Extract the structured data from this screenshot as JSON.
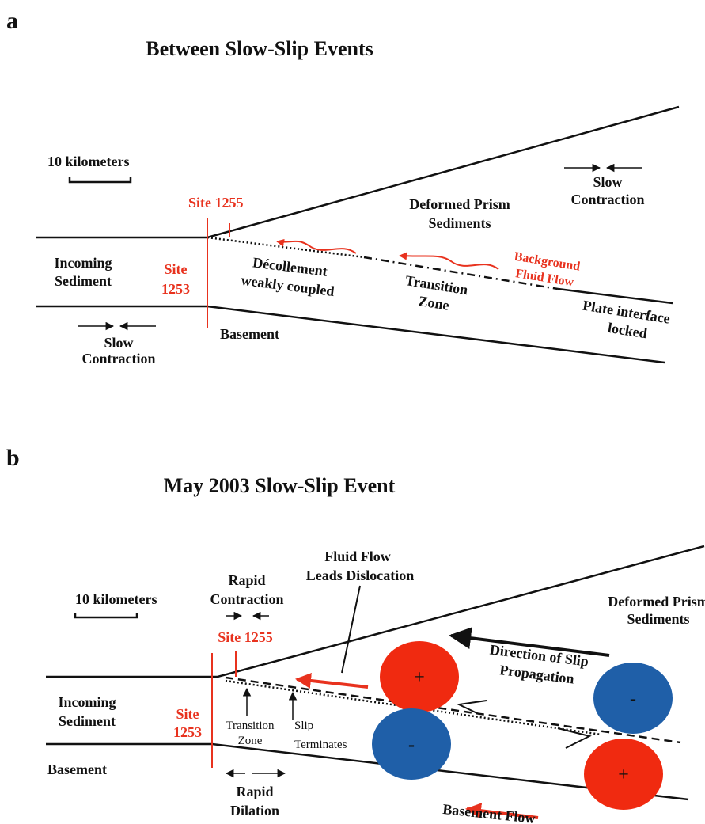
{
  "panel_a": {
    "label": "a",
    "title": "Between Slow-Slip Events",
    "scale": "10 kilometers",
    "site_1255": "Site 1255",
    "site_1253": [
      "Site",
      "1253"
    ],
    "prism": [
      "Deformed Prism",
      "Sediments"
    ],
    "slow_contraction_right": [
      "Slow",
      "Contraction"
    ],
    "incoming": [
      "Incoming",
      "Sediment"
    ],
    "decollement": [
      "Décollement",
      "weakly coupled"
    ],
    "fluid_flow": [
      "Background",
      "Fluid Flow"
    ],
    "transition": [
      "Transition",
      "Zone"
    ],
    "plate_interface": [
      "Plate interface",
      "locked"
    ],
    "basement": "Basement",
    "slow_contraction_left": [
      "Slow",
      "Contraction"
    ]
  },
  "panel_b": {
    "label": "b",
    "title": "May 2003 Slow-Slip Event",
    "scale": "10 kilometers",
    "rapid_contraction": [
      "Rapid",
      "Contraction"
    ],
    "site_1255": "Site 1255",
    "fluid_leads": [
      "Fluid Flow",
      "Leads Dislocation"
    ],
    "prism": [
      "Deformed Prism",
      "Sediments"
    ],
    "slip_direction": [
      "Direction of Slip",
      "Propagation"
    ],
    "incoming": [
      "Incoming",
      "Sediment"
    ],
    "site_1253": [
      "Site",
      "1253"
    ],
    "transition": [
      "Transition",
      "Zone"
    ],
    "slip_terminates": [
      "Slip",
      "Terminates"
    ],
    "basement": "Basement",
    "rapid_dilation": [
      "Rapid",
      "Dilation"
    ],
    "basement_flow": "Basement Flow",
    "signs": [
      "+",
      "-",
      "-",
      "+"
    ]
  }
}
